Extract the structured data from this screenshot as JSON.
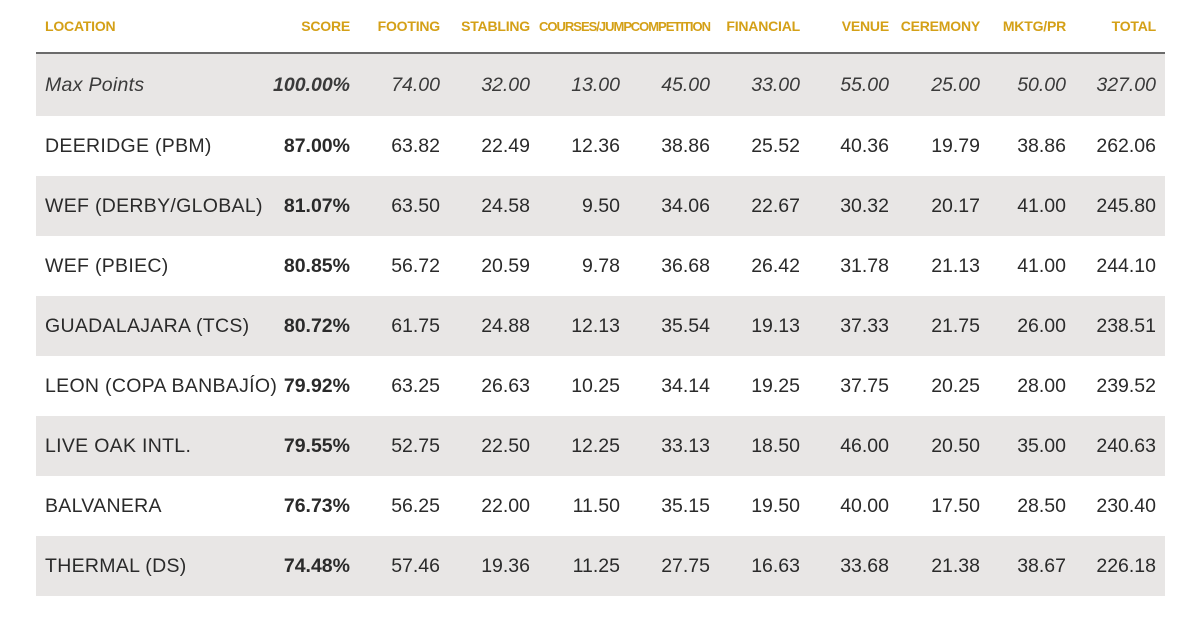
{
  "colors": {
    "header_text": "#d4a017",
    "row_shade": "#e8e6e5",
    "header_rule": "#6b6b6b",
    "body_text": "#2a2a2a"
  },
  "headers": [
    "LOCATION",
    "SCORE",
    "FOOTING",
    "STABLING",
    "COURSES/JUMP",
    "COMPETITION",
    "FINANCIAL",
    "VENUE",
    "CEREMONY",
    "MKTG/PR",
    "TOTAL"
  ],
  "max_row": [
    "Max Points",
    "100.00%",
    "74.00",
    "32.00",
    "13.00",
    "45.00",
    "33.00",
    "55.00",
    "25.00",
    "50.00",
    "327.00"
  ],
  "rows": [
    [
      "DEERIDGE (PBM)",
      "87.00%",
      "63.82",
      "22.49",
      "12.36",
      "38.86",
      "25.52",
      "40.36",
      "19.79",
      "38.86",
      "262.06"
    ],
    [
      "WEF (DERBY/GLOBAL)",
      "81.07%",
      "63.50",
      "24.58",
      "9.50",
      "34.06",
      "22.67",
      "30.32",
      "20.17",
      "41.00",
      "245.80"
    ],
    [
      "WEF (PBIEC)",
      "80.85%",
      "56.72",
      "20.59",
      "9.78",
      "36.68",
      "26.42",
      "31.78",
      "21.13",
      "41.00",
      "244.10"
    ],
    [
      "GUADALAJARA (TCS)",
      "80.72%",
      "61.75",
      "24.88",
      "12.13",
      "35.54",
      "19.13",
      "37.33",
      "21.75",
      "26.00",
      "238.51"
    ],
    [
      "LEON (COPA BANBAJÍO)",
      "79.92%",
      "63.25",
      "26.63",
      "10.25",
      "34.14",
      "19.25",
      "37.75",
      "20.25",
      "28.00",
      "239.52"
    ],
    [
      "LIVE OAK INTL.",
      "79.55%",
      "52.75",
      "22.50",
      "12.25",
      "33.13",
      "18.50",
      "46.00",
      "20.50",
      "35.00",
      "240.63"
    ],
    [
      "BALVANERA",
      "76.73%",
      "56.25",
      "22.00",
      "11.50",
      "35.15",
      "19.50",
      "40.00",
      "17.50",
      "28.50",
      "230.40"
    ],
    [
      "THERMAL (DS)",
      "74.48%",
      "57.46",
      "19.36",
      "11.25",
      "27.75",
      "16.63",
      "33.68",
      "21.38",
      "38.67",
      "226.18"
    ]
  ]
}
